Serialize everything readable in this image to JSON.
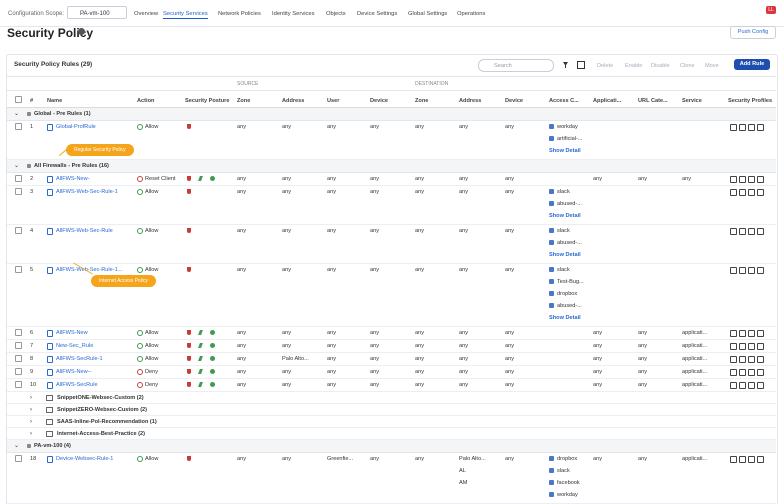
{
  "header": {
    "scope_label": "Configuration Scope:",
    "scope": "PA-vm-100",
    "nav": [
      "Overview",
      "Security Services",
      "Network Policies",
      "Identity Services",
      "Objects",
      "Device Settings",
      "Global Settings",
      "Operations"
    ],
    "avatar": "LL"
  },
  "page": {
    "title": "Security Policy",
    "push": "Push Config"
  },
  "table": {
    "title": "Security Policy Rules (29)",
    "search": "Search",
    "actions": [
      "Delete",
      "Enable",
      "Disable",
      "Clone",
      "Move"
    ],
    "add": "Add Rule",
    "groups": [
      "SOURCE",
      "DESTINATION"
    ],
    "columns": [
      "#",
      "Name",
      "Action",
      "Security Posture",
      "Zone",
      "Address",
      "User",
      "Device",
      "Zone",
      "Address",
      "Device",
      "Access C...",
      "Applicati...",
      "URL Cate...",
      "Service",
      "Security Profiles"
    ],
    "sections": [
      {
        "title": "Global - Pre Rules (1)",
        "rules": [
          {
            "num": "1",
            "name": "Global-ProfRule",
            "action": "Allow",
            "action_color": "#3e9b4f",
            "src_zone": "any",
            "src_address": "any",
            "user": "any",
            "src_device": "any",
            "dst_zone": "any",
            "dst_address": [
              "any"
            ],
            "dst_device": "any",
            "access": [
              "workday",
              "artificial-..."
            ],
            "show_detail": "Show Detail"
          }
        ]
      },
      {
        "title": "All Firewalls - Pre Rules (16)",
        "rules": [
          {
            "num": "2",
            "name": "AllFWS-New-",
            "action": "Reset Client",
            "action_color": "#c94040",
            "src_zone": "any",
            "src_address": "any",
            "user": "any",
            "src_device": "any",
            "dst_zone": "any",
            "dst_address": [
              "any"
            ],
            "dst_device": "any",
            "application": "any",
            "url_category": "any",
            "service": "any"
          },
          {
            "num": "3",
            "name": "AllFWS-Web-Sec-Rule-1",
            "action": "Allow",
            "action_color": "#3e9b4f",
            "src_zone": "any",
            "src_address": "any",
            "user": "any",
            "src_device": "any",
            "dst_zone": "any",
            "dst_address": [
              "any"
            ],
            "dst_device": "any",
            "access": [
              "slack",
              "abused-..."
            ],
            "show_detail": "Show Detail"
          },
          {
            "num": "4",
            "name": "AllFWS-Web-Sec-Rule",
            "action": "Allow",
            "action_color": "#3e9b4f",
            "src_zone": "any",
            "src_address": "any",
            "user": "any",
            "src_device": "any",
            "dst_zone": "any",
            "dst_address": [
              "any"
            ],
            "dst_device": "any",
            "access": [
              "slack",
              "abused-..."
            ],
            "show_detail": "Show Detail"
          },
          {
            "num": "5",
            "name": "AllFWS-Web-Sec-Rule-1...",
            "action": "Allow",
            "action_color": "#3e9b4f",
            "src_zone": "any",
            "src_address": "any",
            "user": "any",
            "src_device": "any",
            "dst_zone": "any",
            "dst_address": [
              "any"
            ],
            "dst_device": "any",
            "access": [
              "slack",
              "Test-Bug...",
              "dropbox",
              "abused-..."
            ],
            "show_detail": "Show Detail"
          },
          {
            "num": "6",
            "name": "AllFWS-New",
            "action": "Allow",
            "action_color": "#3e9b4f",
            "src_zone": "any",
            "src_address": "any",
            "user": "any",
            "src_device": "any",
            "dst_zone": "any",
            "dst_address": [
              "any"
            ],
            "dst_device": "any",
            "application": "any",
            "url_category": "any",
            "service": "applicati..."
          },
          {
            "num": "7",
            "name": "New-Sec_Rule",
            "action": "Allow",
            "action_color": "#3e9b4f",
            "src_zone": "any",
            "src_address": "any",
            "user": "any",
            "src_device": "any",
            "dst_zone": "any",
            "dst_address": [
              "any"
            ],
            "dst_device": "any",
            "application": "any",
            "url_category": "any",
            "service": "applicati..."
          },
          {
            "num": "8",
            "name": "AllFWS-SecRule-1",
            "action": "Allow",
            "action_color": "#3e9b4f",
            "src_zone": "any",
            "src_address": "Palo Alto...",
            "user": "any",
            "src_device": "any",
            "dst_zone": "any",
            "dst_address": [
              "any"
            ],
            "dst_device": "any",
            "application": "any",
            "url_category": "any",
            "service": "applicati..."
          },
          {
            "num": "9",
            "name": "AllFWS-New--",
            "action": "Deny",
            "action_color": "#c94040",
            "src_zone": "any",
            "src_address": "any",
            "user": "any",
            "src_device": "any",
            "dst_zone": "any",
            "dst_address": [
              "any"
            ],
            "dst_device": "any",
            "application": "any",
            "url_category": "any",
            "service": "applicati..."
          },
          {
            "num": "10",
            "name": "AllFWS-SecRule",
            "action": "Deny",
            "action_color": "#c94040",
            "src_zone": "any",
            "src_address": "any",
            "user": "any",
            "src_device": "any",
            "dst_zone": "any",
            "dst_address": [
              "any"
            ],
            "dst_device": "any",
            "application": "any",
            "url_category": "any",
            "service": "applicati..."
          }
        ],
        "snippets": [
          "SnippetONE-Websec-Custom (2)",
          "SnippetZERO-Websec-Custom (2)",
          "SAAS-Inline-Pol-Recommendation (1)",
          "Internet-Access-Best-Practice (2)"
        ]
      },
      {
        "title": "PA-vm-100 (4)",
        "rules": [
          {
            "num": "18",
            "name": "Device-Websec-Rule-1",
            "action": "Allow",
            "action_color": "#3e9b4f",
            "src_zone": "any",
            "src_address": "any",
            "user": "Greenfie...",
            "src_device": "any",
            "dst_zone": "any",
            "dst_address": [
              "Palo Alto...",
              "AL",
              "AM"
            ],
            "dst_device": "any",
            "access": [
              "dropbox",
              "slack",
              "facebook",
              "workday"
            ],
            "application": "any",
            "url_category": "any",
            "service": "applicati..."
          }
        ]
      }
    ]
  },
  "callouts": [
    "Regular Security Policy",
    "Internet Access Policy"
  ]
}
